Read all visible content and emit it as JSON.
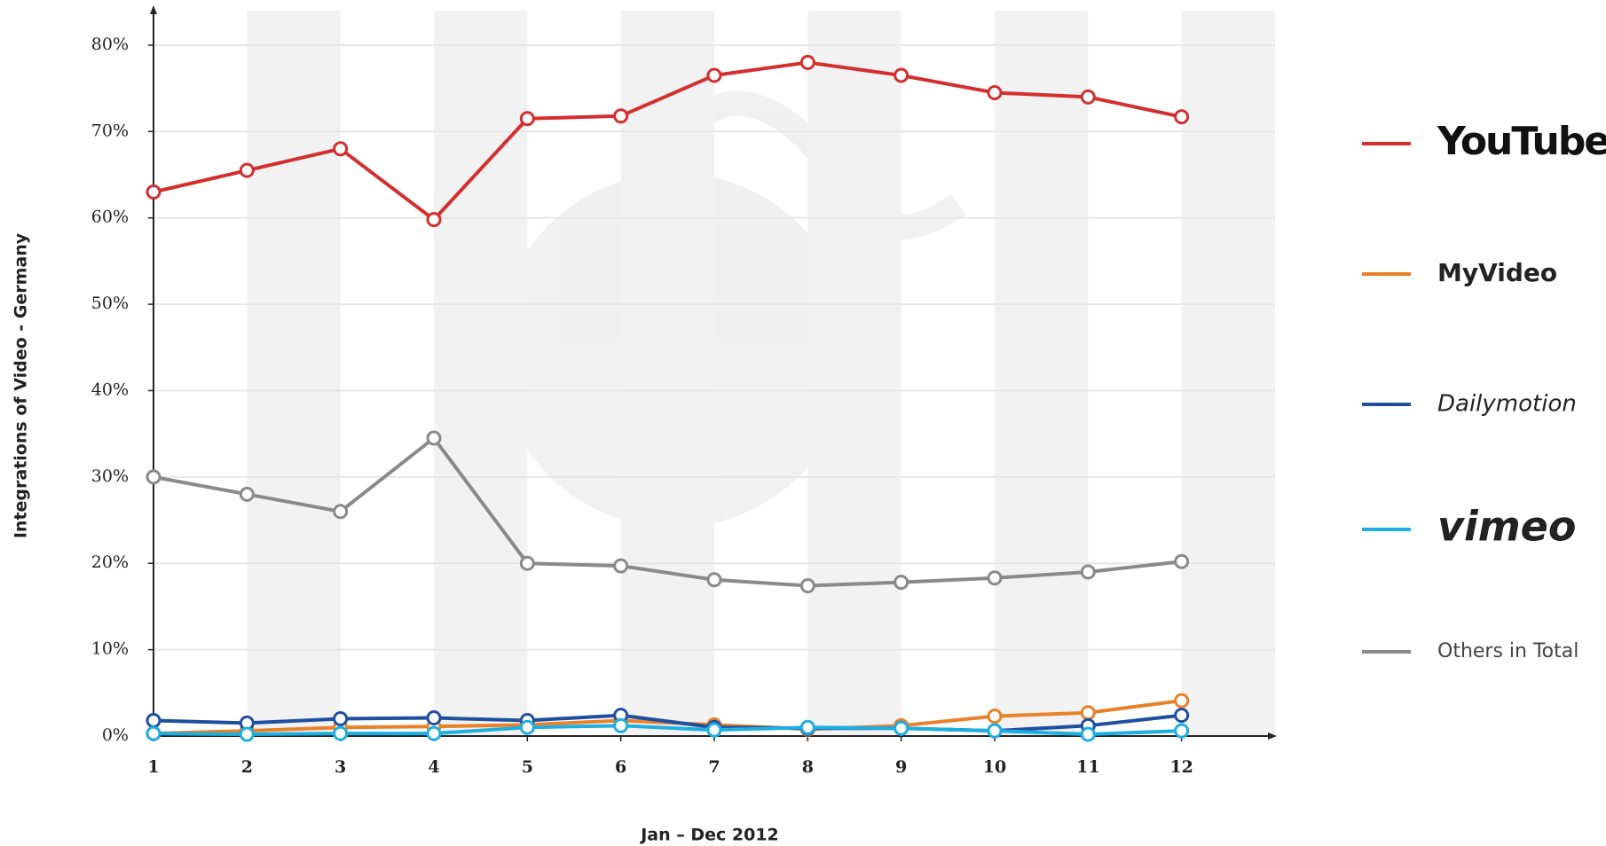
{
  "chart_data": {
    "type": "line",
    "x_label": "Jan – Dec 2012",
    "y_label": "Integrations of Video - Germany",
    "x": [
      1,
      2,
      3,
      4,
      5,
      6,
      7,
      8,
      9,
      10,
      11,
      12
    ],
    "xlim": [
      1,
      13
    ],
    "xticks": [
      1,
      2,
      3,
      4,
      5,
      6,
      7,
      8,
      9,
      10,
      11,
      12
    ],
    "ylim": [
      0,
      84
    ],
    "yticks": [
      {
        "value": 0,
        "label": "0%"
      },
      {
        "value": 10,
        "label": "10%"
      },
      {
        "value": 20,
        "label": "20%"
      },
      {
        "value": 30,
        "label": "30%"
      },
      {
        "value": 40,
        "label": "40%"
      },
      {
        "value": 50,
        "label": "50%"
      },
      {
        "value": 60,
        "label": "60%"
      },
      {
        "value": 70,
        "label": "70%"
      },
      {
        "value": 80,
        "label": "80%"
      }
    ],
    "grid": true,
    "legend": "right",
    "series": [
      {
        "name": "YouTube",
        "color": "#d32f2f",
        "values": [
          63,
          65.5,
          68,
          59.8,
          71.5,
          71.8,
          76.5,
          78,
          76.5,
          74.5,
          74,
          71.7
        ]
      },
      {
        "name": "MyVideo",
        "color": "#e8822a",
        "values": [
          0.3,
          0.6,
          1,
          1.1,
          1.3,
          1.8,
          1.3,
          0.8,
          1.2,
          2.3,
          2.7,
          4.1
        ]
      },
      {
        "name": "Dailymotion",
        "color": "#1f4fa0",
        "values": [
          1.8,
          1.5,
          2,
          2.1,
          1.8,
          2.4,
          1.0,
          0.9,
          0.9,
          0.6,
          1.2,
          2.4
        ]
      },
      {
        "name": "vimeo",
        "color": "#1eaee0",
        "values": [
          0.3,
          0.2,
          0.3,
          0.3,
          1.0,
          1.2,
          0.7,
          1.0,
          0.9,
          0.6,
          0.2,
          0.6
        ]
      },
      {
        "name": "Others in Total",
        "color": "#8a8a8a",
        "values": [
          30,
          28,
          26,
          34.5,
          20,
          19.7,
          18.1,
          17.4,
          17.8,
          18.3,
          19,
          20.2
        ]
      }
    ]
  }
}
